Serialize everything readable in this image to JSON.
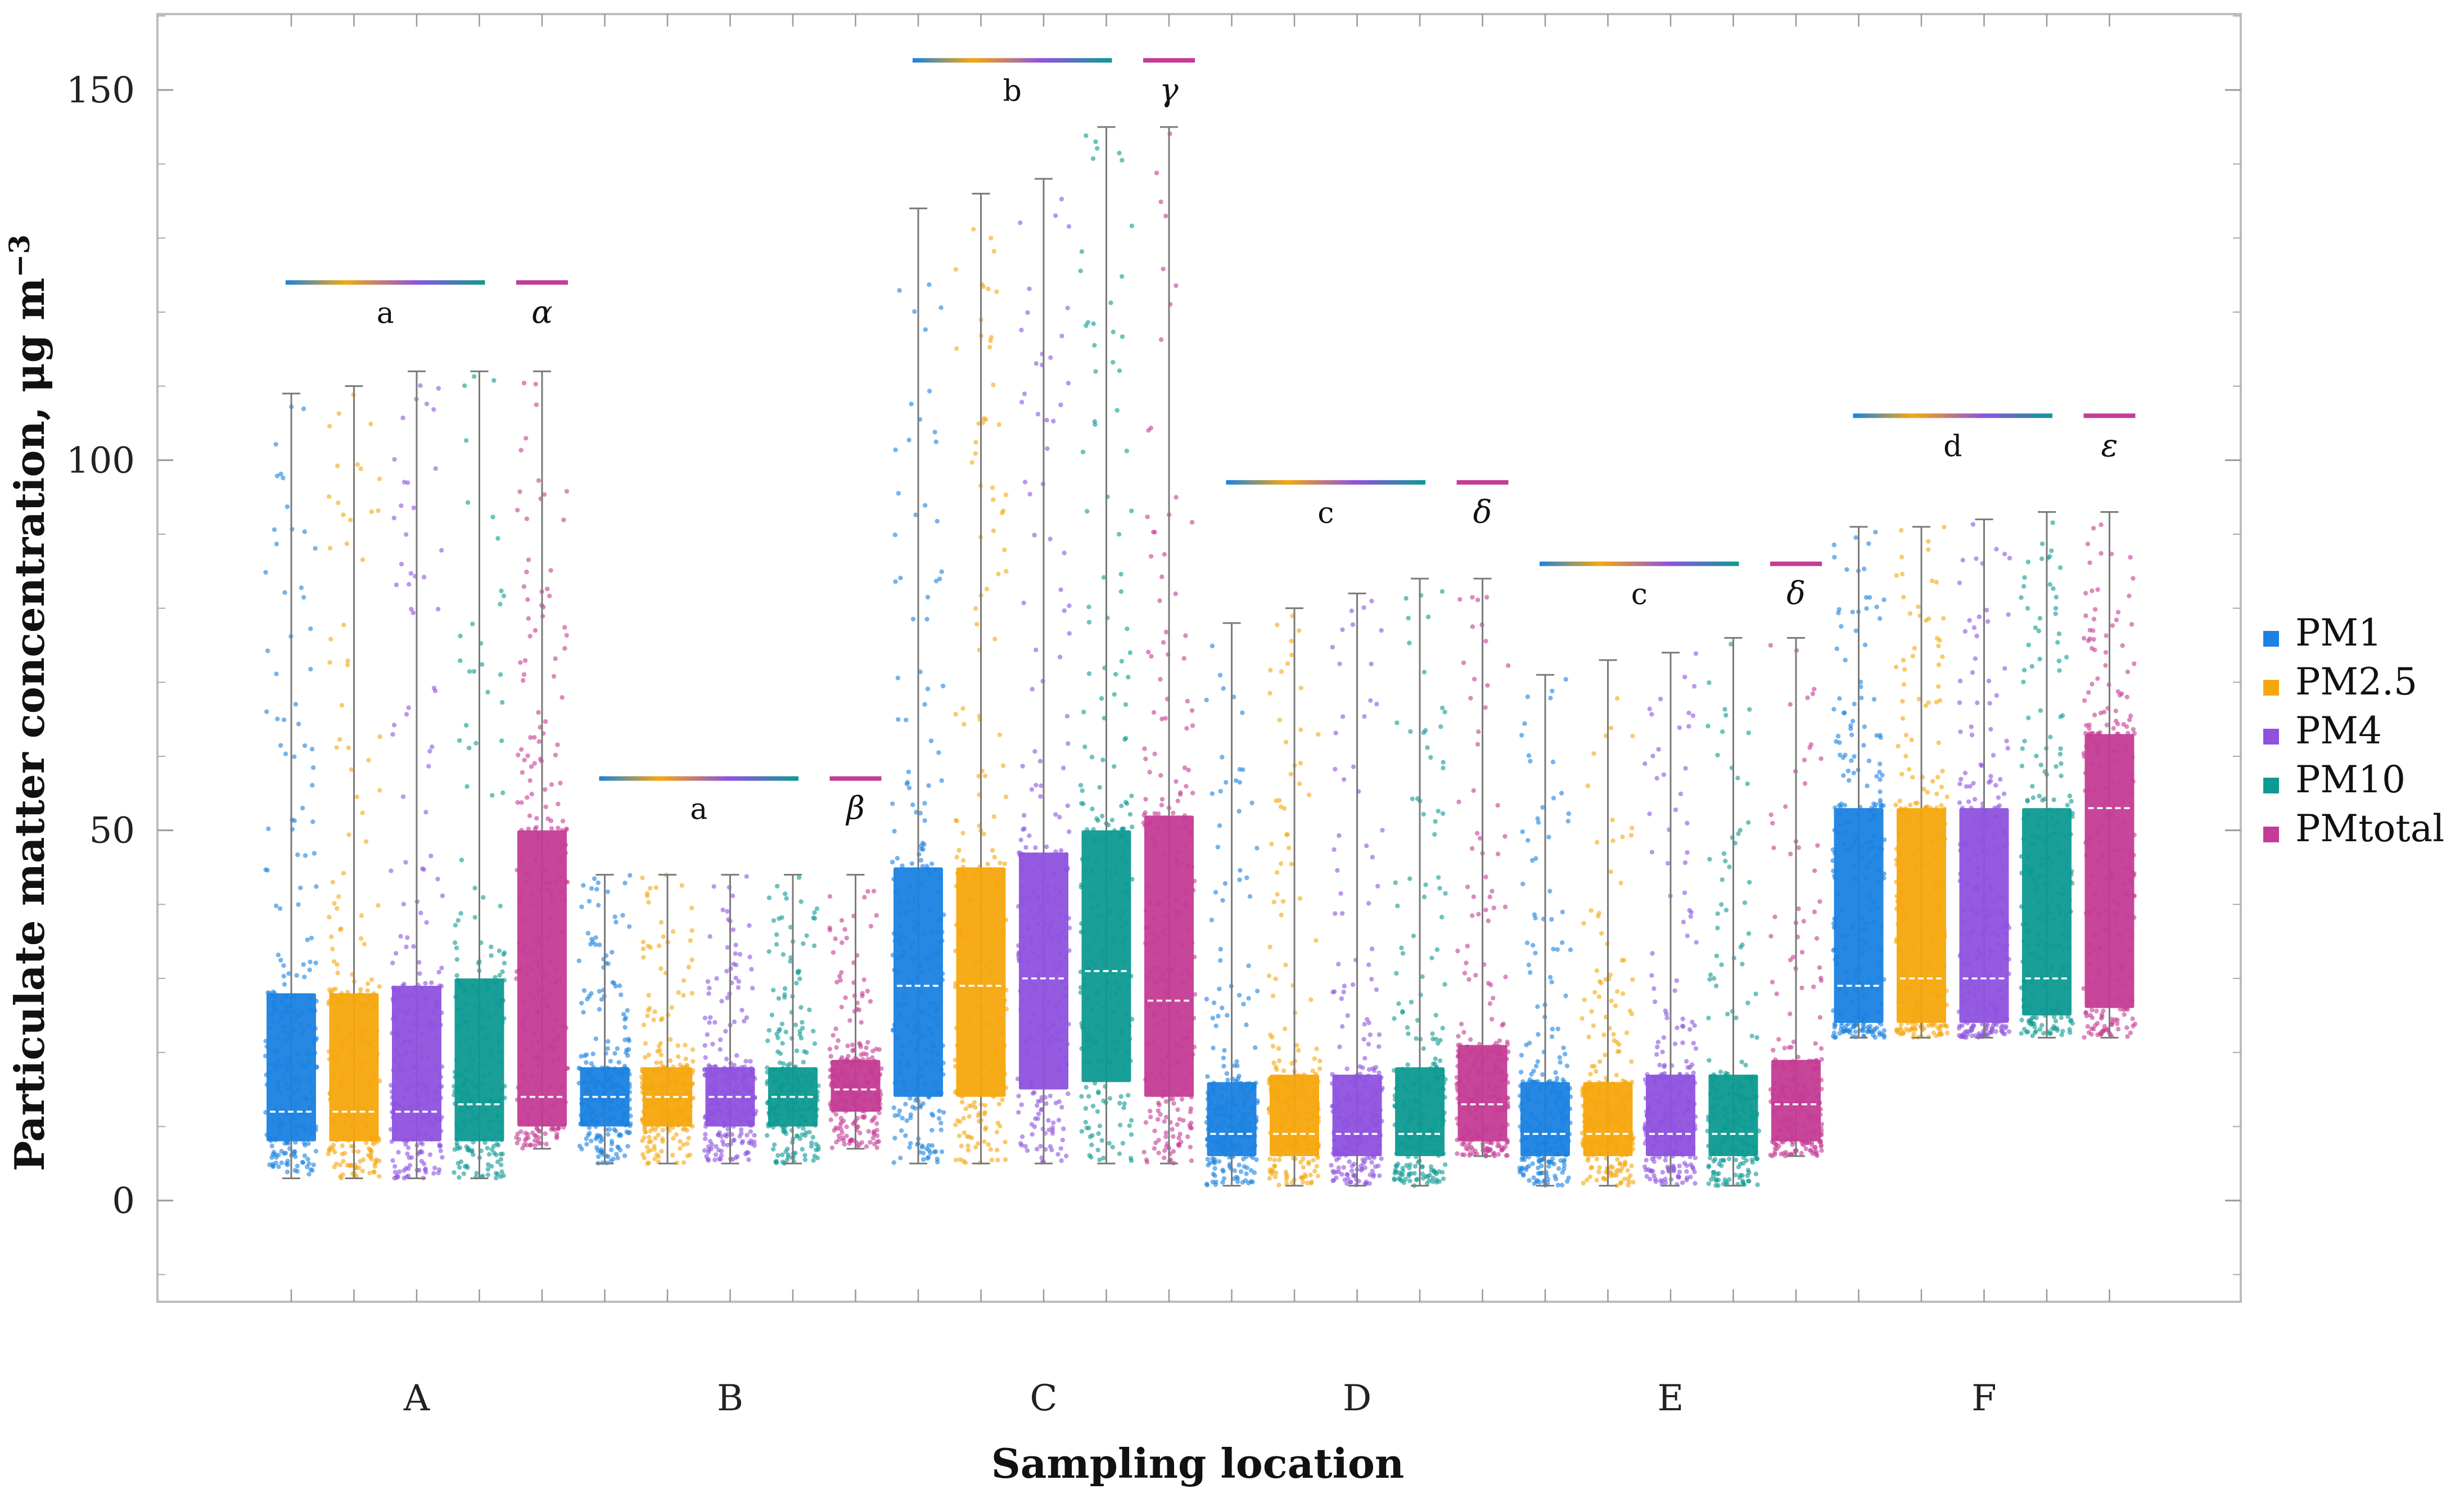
{
  "chart_data": {
    "type": "boxplot",
    "xlabel": "Sampling location",
    "ylabel": "Particulate matter concentration, μg m",
    "ylabel_superscript": "−3",
    "ylim": [
      -14,
      160
    ],
    "yticks": [
      0,
      50,
      100,
      150
    ],
    "categories": [
      "A",
      "B",
      "C",
      "D",
      "E",
      "F"
    ],
    "series_names": [
      "PM1",
      "PM2.5",
      "PM4",
      "PM10",
      "PMtotal"
    ],
    "colors": {
      "PM1": "#1a82e0",
      "PM2.5": "#f5a70d",
      "PM4": "#8e52df",
      "PM10": "#0e9a92",
      "PMtotal": "#c43c95"
    },
    "frame_color": "#bdbdbd",
    "whisker_color": "#7a7a7a",
    "boxes": [
      {
        "location": "A",
        "series": "PM1",
        "min": 3,
        "q1": 8,
        "median": 12,
        "q3": 28,
        "max": 109
      },
      {
        "location": "A",
        "series": "PM2.5",
        "min": 3,
        "q1": 8,
        "median": 12,
        "q3": 28,
        "max": 110
      },
      {
        "location": "A",
        "series": "PM4",
        "min": 3,
        "q1": 8,
        "median": 12,
        "q3": 29,
        "max": 112
      },
      {
        "location": "A",
        "series": "PM10",
        "min": 3,
        "q1": 8,
        "median": 13,
        "q3": 30,
        "max": 112
      },
      {
        "location": "A",
        "series": "PMtotal",
        "min": 7,
        "q1": 10,
        "median": 14,
        "q3": 50,
        "max": 112
      },
      {
        "location": "B",
        "series": "PM1",
        "min": 5,
        "q1": 10,
        "median": 14,
        "q3": 18,
        "max": 44
      },
      {
        "location": "B",
        "series": "PM2.5",
        "min": 5,
        "q1": 10,
        "median": 14,
        "q3": 18,
        "max": 44
      },
      {
        "location": "B",
        "series": "PM4",
        "min": 5,
        "q1": 10,
        "median": 14,
        "q3": 18,
        "max": 44
      },
      {
        "location": "B",
        "series": "PM10",
        "min": 5,
        "q1": 10,
        "median": 14,
        "q3": 18,
        "max": 44
      },
      {
        "location": "B",
        "series": "PMtotal",
        "min": 7,
        "q1": 12,
        "median": 15,
        "q3": 19,
        "max": 44
      },
      {
        "location": "C",
        "series": "PM1",
        "min": 5,
        "q1": 14,
        "median": 29,
        "q3": 45,
        "max": 134
      },
      {
        "location": "C",
        "series": "PM2.5",
        "min": 5,
        "q1": 14,
        "median": 29,
        "q3": 45,
        "max": 136
      },
      {
        "location": "C",
        "series": "PM4",
        "min": 5,
        "q1": 15,
        "median": 30,
        "q3": 47,
        "max": 138
      },
      {
        "location": "C",
        "series": "PM10",
        "min": 5,
        "q1": 16,
        "median": 31,
        "q3": 50,
        "max": 145
      },
      {
        "location": "C",
        "series": "PMtotal",
        "min": 5,
        "q1": 14,
        "median": 27,
        "q3": 52,
        "max": 145
      },
      {
        "location": "D",
        "series": "PM1",
        "min": 2,
        "q1": 6,
        "median": 9,
        "q3": 16,
        "max": 78
      },
      {
        "location": "D",
        "series": "PM2.5",
        "min": 2,
        "q1": 6,
        "median": 9,
        "q3": 17,
        "max": 80
      },
      {
        "location": "D",
        "series": "PM4",
        "min": 2,
        "q1": 6,
        "median": 9,
        "q3": 17,
        "max": 82
      },
      {
        "location": "D",
        "series": "PM10",
        "min": 2,
        "q1": 6,
        "median": 9,
        "q3": 18,
        "max": 84
      },
      {
        "location": "D",
        "series": "PMtotal",
        "min": 6,
        "q1": 8,
        "median": 13,
        "q3": 21,
        "max": 84
      },
      {
        "location": "E",
        "series": "PM1",
        "min": 2,
        "q1": 6,
        "median": 9,
        "q3": 16,
        "max": 71
      },
      {
        "location": "E",
        "series": "PM2.5",
        "min": 2,
        "q1": 6,
        "median": 9,
        "q3": 16,
        "max": 73
      },
      {
        "location": "E",
        "series": "PM4",
        "min": 2,
        "q1": 6,
        "median": 9,
        "q3": 17,
        "max": 74
      },
      {
        "location": "E",
        "series": "PM10",
        "min": 2,
        "q1": 6,
        "median": 9,
        "q3": 17,
        "max": 76
      },
      {
        "location": "E",
        "series": "PMtotal",
        "min": 6,
        "q1": 8,
        "median": 13,
        "q3": 19,
        "max": 76
      },
      {
        "location": "F",
        "series": "PM1",
        "min": 22,
        "q1": 24,
        "median": 29,
        "q3": 53,
        "max": 91
      },
      {
        "location": "F",
        "series": "PM2.5",
        "min": 22,
        "q1": 24,
        "median": 30,
        "q3": 53,
        "max": 91
      },
      {
        "location": "F",
        "series": "PM4",
        "min": 22,
        "q1": 24,
        "median": 30,
        "q3": 53,
        "max": 92
      },
      {
        "location": "F",
        "series": "PM10",
        "min": 22,
        "q1": 25,
        "median": 30,
        "q3": 53,
        "max": 93
      },
      {
        "location": "F",
        "series": "PMtotal",
        "min": 22,
        "q1": 26,
        "median": 53,
        "q3": 63,
        "max": 93
      }
    ],
    "significance": [
      {
        "location": "A",
        "group_letter": "a",
        "pmtotal_letter": "α",
        "level": 124
      },
      {
        "location": "B",
        "group_letter": "a",
        "pmtotal_letter": "β",
        "level": 57
      },
      {
        "location": "C",
        "group_letter": "b",
        "pmtotal_letter": "γ",
        "level": 154
      },
      {
        "location": "D",
        "group_letter": "c",
        "pmtotal_letter": "δ",
        "level": 97
      },
      {
        "location": "E",
        "group_letter": "c",
        "pmtotal_letter": "δ",
        "level": 86
      },
      {
        "location": "F",
        "group_letter": "d",
        "pmtotal_letter": "ε",
        "level": 106
      }
    ],
    "legend": {
      "position": "right",
      "entries": [
        "PM1",
        "PM2.5",
        "PM4",
        "PM10",
        "PMtotal"
      ]
    }
  }
}
